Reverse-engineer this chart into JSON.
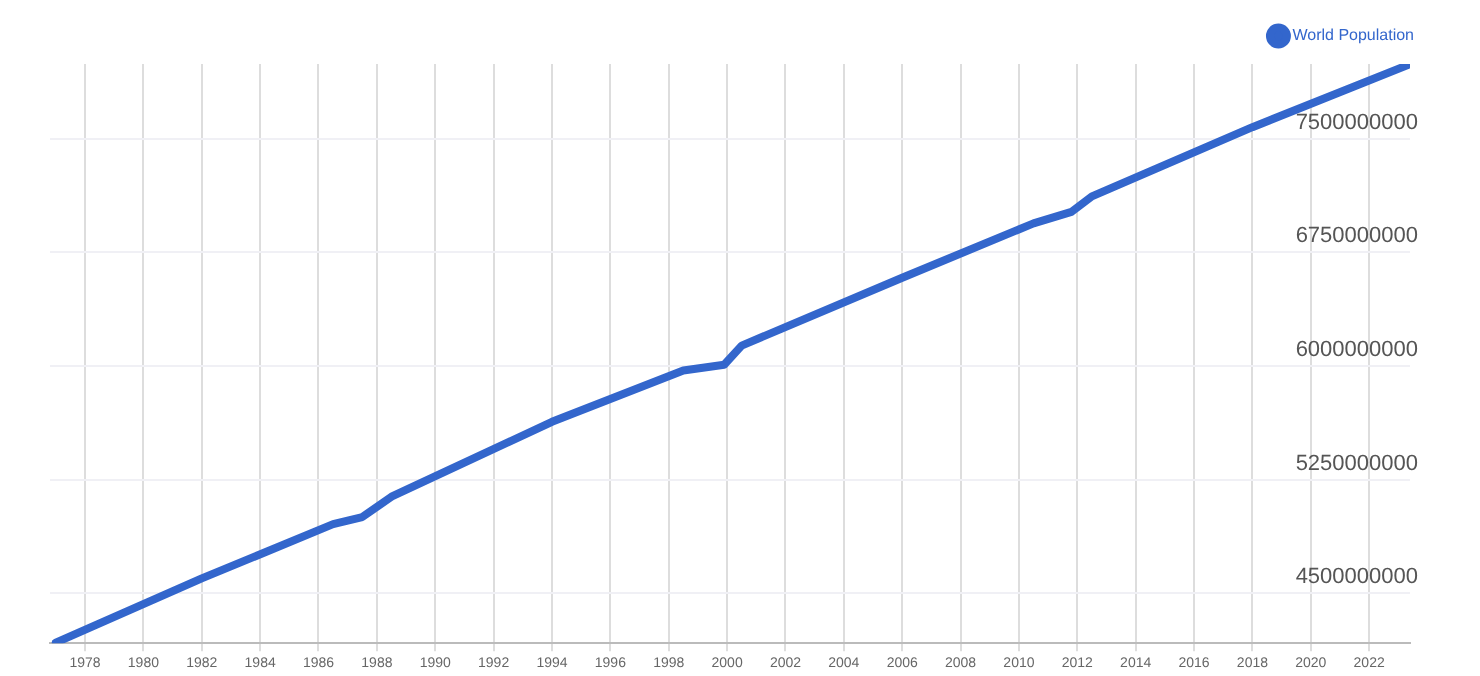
{
  "chart_data": {
    "type": "line",
    "x": [
      1977,
      1982,
      1986.5,
      1987.5,
      1988.5,
      1994,
      1998.5,
      1999.9,
      2000.5,
      2006,
      2010.5,
      2011.8,
      2012.5,
      2018,
      2023.3
    ],
    "series": [
      {
        "name": "World Population",
        "color": "#3366cc",
        "values": [
          4174000000,
          4598000000,
          4956000000,
          5003000000,
          5137000000,
          5632000000,
          5970000000,
          6008000000,
          6135000000,
          6583000000,
          6942000000,
          7018000000,
          7120000000,
          7577000000,
          7985000000
        ]
      }
    ],
    "xlim": [
      1976.8,
      2023.4
    ],
    "xticks": [
      1978,
      1980,
      1982,
      1984,
      1986,
      1988,
      1990,
      1992,
      1994,
      1996,
      1998,
      2000,
      2002,
      2004,
      2006,
      2008,
      2010,
      2012,
      2014,
      2016,
      2018,
      2020,
      2022
    ],
    "ylim": [
      4170000000,
      7994000000
    ],
    "yticks": [
      4500000000,
      5250000000,
      6000000000,
      6750000000,
      7500000000
    ],
    "grid": true,
    "legend": "top right",
    "marker": "none",
    "line_style": "solid"
  }
}
